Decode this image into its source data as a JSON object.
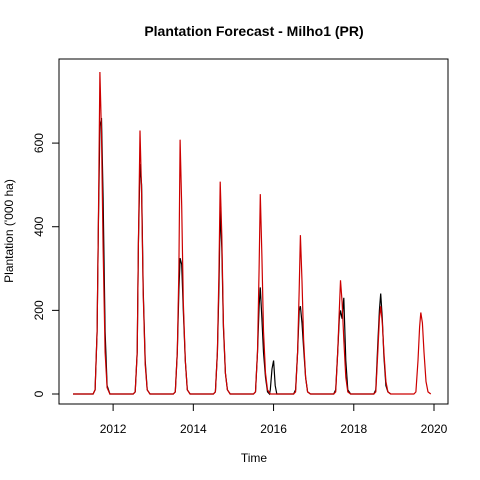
{
  "chart_data": {
    "type": "line",
    "title": "Plantation Forecast - Milho1 (PR)",
    "xlabel": "Time",
    "ylabel": "Plantation ('000 ha)",
    "xlim": [
      2011.0,
      2020.0
    ],
    "ylim": [
      0,
      770
    ],
    "x_ticks": [
      2012,
      2014,
      2016,
      2018,
      2020
    ],
    "x_tick_labels": [
      "2012",
      "2014",
      "2016",
      "2018",
      "2020"
    ],
    "y_ticks": [
      0,
      200,
      400,
      600
    ],
    "y_tick_labels": [
      "0",
      "200",
      "400",
      "600"
    ],
    "grid": false,
    "legend": "none",
    "series": [
      {
        "color": "#000000",
        "points": [
          [
            2011.0,
            0
          ],
          [
            2011.5,
            0
          ],
          [
            2011.55,
            10
          ],
          [
            2011.6,
            150
          ],
          [
            2011.63,
            390
          ],
          [
            2011.67,
            640
          ],
          [
            2011.71,
            660
          ],
          [
            2011.75,
            470
          ],
          [
            2011.8,
            150
          ],
          [
            2011.85,
            20
          ],
          [
            2011.92,
            0
          ],
          [
            2012.5,
            0
          ],
          [
            2012.55,
            5
          ],
          [
            2012.6,
            100
          ],
          [
            2012.63,
            360
          ],
          [
            2012.67,
            550
          ],
          [
            2012.71,
            500
          ],
          [
            2012.75,
            250
          ],
          [
            2012.8,
            80
          ],
          [
            2012.85,
            10
          ],
          [
            2012.92,
            0
          ],
          [
            2013.5,
            0
          ],
          [
            2013.55,
            5
          ],
          [
            2013.6,
            100
          ],
          [
            2013.64,
            250
          ],
          [
            2013.67,
            325
          ],
          [
            2013.71,
            310
          ],
          [
            2013.75,
            200
          ],
          [
            2013.8,
            80
          ],
          [
            2013.85,
            10
          ],
          [
            2013.92,
            0
          ],
          [
            2014.5,
            0
          ],
          [
            2014.55,
            5
          ],
          [
            2014.6,
            100
          ],
          [
            2014.64,
            260
          ],
          [
            2014.67,
            440
          ],
          [
            2014.71,
            350
          ],
          [
            2014.75,
            160
          ],
          [
            2014.8,
            50
          ],
          [
            2014.85,
            10
          ],
          [
            2014.92,
            0
          ],
          [
            2015.5,
            0
          ],
          [
            2015.55,
            5
          ],
          [
            2015.6,
            100
          ],
          [
            2015.64,
            210
          ],
          [
            2015.67,
            255
          ],
          [
            2015.71,
            180
          ],
          [
            2015.75,
            100
          ],
          [
            2015.8,
            40
          ],
          [
            2015.85,
            5
          ],
          [
            2015.9,
            0
          ],
          [
            2015.92,
            10
          ],
          [
            2015.96,
            60
          ],
          [
            2016.0,
            80
          ],
          [
            2016.04,
            20
          ],
          [
            2016.08,
            0
          ],
          [
            2016.5,
            0
          ],
          [
            2016.55,
            10
          ],
          [
            2016.6,
            100
          ],
          [
            2016.64,
            200
          ],
          [
            2016.67,
            210
          ],
          [
            2016.71,
            170
          ],
          [
            2016.75,
            110
          ],
          [
            2016.8,
            40
          ],
          [
            2016.85,
            5
          ],
          [
            2016.92,
            0
          ],
          [
            2017.5,
            0
          ],
          [
            2017.55,
            10
          ],
          [
            2017.6,
            100
          ],
          [
            2017.64,
            180
          ],
          [
            2017.67,
            200
          ],
          [
            2017.71,
            180
          ],
          [
            2017.75,
            230
          ],
          [
            2017.8,
            80
          ],
          [
            2017.85,
            10
          ],
          [
            2017.92,
            0
          ],
          [
            2018.5,
            0
          ],
          [
            2018.55,
            10
          ],
          [
            2018.6,
            120
          ],
          [
            2018.64,
            200
          ],
          [
            2018.67,
            240
          ],
          [
            2018.71,
            180
          ],
          [
            2018.75,
            90
          ],
          [
            2018.8,
            20
          ],
          [
            2018.85,
            5
          ],
          [
            2018.92,
            0
          ]
        ]
      },
      {
        "color": "#cc0000",
        "points": [
          [
            2011.0,
            0
          ],
          [
            2011.5,
            0
          ],
          [
            2011.55,
            10
          ],
          [
            2011.6,
            150
          ],
          [
            2011.63,
            390
          ],
          [
            2011.67,
            770
          ],
          [
            2011.71,
            620
          ],
          [
            2011.75,
            350
          ],
          [
            2011.8,
            100
          ],
          [
            2011.85,
            15
          ],
          [
            2011.92,
            0
          ],
          [
            2012.5,
            0
          ],
          [
            2012.55,
            5
          ],
          [
            2012.6,
            100
          ],
          [
            2012.63,
            360
          ],
          [
            2012.67,
            630
          ],
          [
            2012.71,
            480
          ],
          [
            2012.75,
            240
          ],
          [
            2012.8,
            70
          ],
          [
            2012.85,
            10
          ],
          [
            2012.92,
            0
          ],
          [
            2013.5,
            0
          ],
          [
            2013.55,
            5
          ],
          [
            2013.6,
            100
          ],
          [
            2013.64,
            300
          ],
          [
            2013.67,
            608
          ],
          [
            2013.71,
            450
          ],
          [
            2013.75,
            220
          ],
          [
            2013.8,
            80
          ],
          [
            2013.85,
            10
          ],
          [
            2013.92,
            0
          ],
          [
            2014.5,
            0
          ],
          [
            2014.55,
            5
          ],
          [
            2014.6,
            100
          ],
          [
            2014.64,
            300
          ],
          [
            2014.67,
            508
          ],
          [
            2014.71,
            380
          ],
          [
            2014.75,
            170
          ],
          [
            2014.8,
            50
          ],
          [
            2014.85,
            10
          ],
          [
            2014.92,
            0
          ],
          [
            2015.5,
            0
          ],
          [
            2015.55,
            5
          ],
          [
            2015.6,
            100
          ],
          [
            2015.64,
            300
          ],
          [
            2015.67,
            478
          ],
          [
            2015.71,
            330
          ],
          [
            2015.75,
            150
          ],
          [
            2015.8,
            50
          ],
          [
            2015.85,
            10
          ],
          [
            2015.92,
            0
          ],
          [
            2016.5,
            0
          ],
          [
            2016.55,
            5
          ],
          [
            2016.6,
            100
          ],
          [
            2016.64,
            250
          ],
          [
            2016.67,
            380
          ],
          [
            2016.71,
            270
          ],
          [
            2016.75,
            130
          ],
          [
            2016.8,
            40
          ],
          [
            2016.85,
            5
          ],
          [
            2016.92,
            0
          ],
          [
            2017.5,
            0
          ],
          [
            2017.55,
            5
          ],
          [
            2017.6,
            100
          ],
          [
            2017.64,
            200
          ],
          [
            2017.67,
            272
          ],
          [
            2017.71,
            220
          ],
          [
            2017.75,
            130
          ],
          [
            2017.8,
            40
          ],
          [
            2017.85,
            5
          ],
          [
            2017.92,
            0
          ],
          [
            2018.5,
            0
          ],
          [
            2018.55,
            5
          ],
          [
            2018.6,
            100
          ],
          [
            2018.64,
            180
          ],
          [
            2018.67,
            210
          ],
          [
            2018.71,
            170
          ],
          [
            2018.75,
            100
          ],
          [
            2018.8,
            30
          ],
          [
            2018.85,
            5
          ],
          [
            2018.92,
            0
          ],
          [
            2019.5,
            0
          ],
          [
            2019.55,
            5
          ],
          [
            2019.6,
            80
          ],
          [
            2019.64,
            160
          ],
          [
            2019.67,
            195
          ],
          [
            2019.71,
            170
          ],
          [
            2019.75,
            100
          ],
          [
            2019.8,
            30
          ],
          [
            2019.85,
            5
          ],
          [
            2019.92,
            0
          ]
        ]
      }
    ]
  }
}
